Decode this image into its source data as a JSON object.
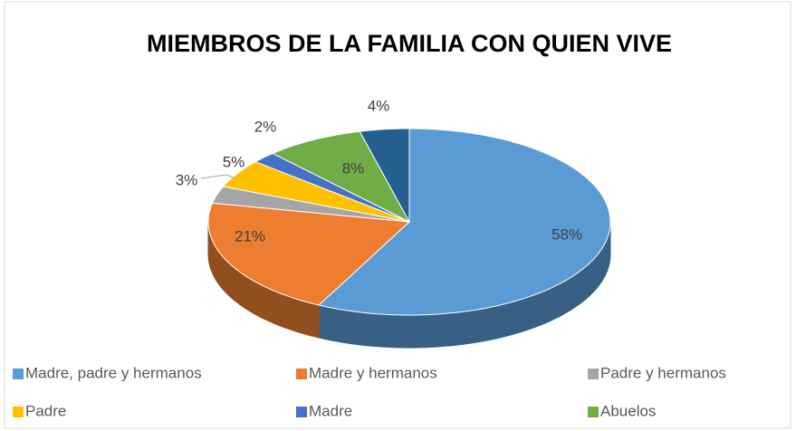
{
  "chart_data": {
    "type": "pie",
    "title": "MIEMBROS DE LA FAMILIA CON QUIEN VIVE",
    "categories": [
      "Madre, padre y hermanos",
      "Madre y hermanos",
      "Padre y hermanos",
      "Padre",
      "Madre",
      "Abuelos",
      null
    ],
    "values": [
      58,
      21,
      3,
      5,
      2,
      8,
      4
    ],
    "value_labels": [
      "58%",
      "21%",
      "3%",
      "5%",
      "2%",
      "8%",
      "4%"
    ],
    "colors": [
      "#5b9bd5",
      "#ed7d31",
      "#a5a5a5",
      "#ffc000",
      "#4472c4",
      "#70ad47",
      "#255e91"
    ],
    "legend": "bottom"
  }
}
